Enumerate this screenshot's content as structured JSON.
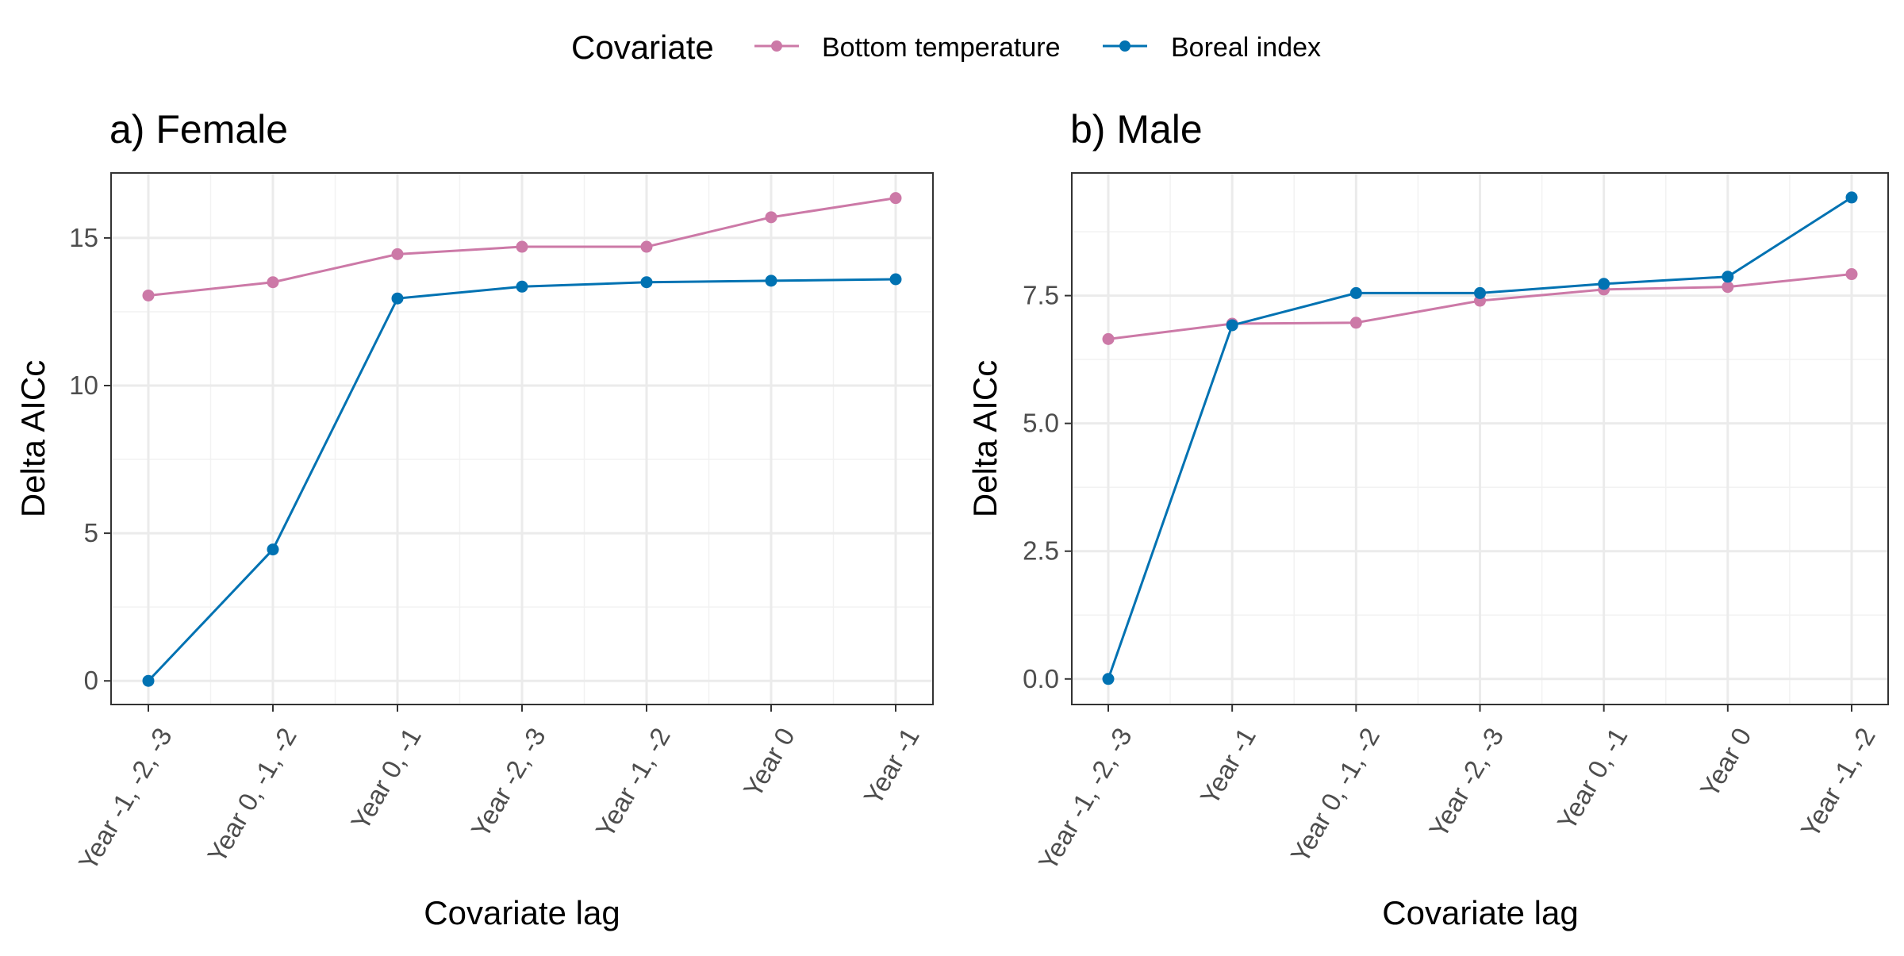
{
  "legend": {
    "title": "Covariate",
    "items": [
      {
        "label": "Bottom temperature",
        "color": "#cc79a7"
      },
      {
        "label": "Boreal index",
        "color": "#0072b2"
      }
    ]
  },
  "chart_data": [
    {
      "type": "line",
      "title": "a) Female",
      "xlabel": "Covariate lag",
      "ylabel": "Delta AICc",
      "categories": [
        "Year -1, -2, -3",
        "Year 0, -1, -2",
        "Year 0, -1",
        "Year -2, -3",
        "Year -1, -2",
        "Year 0",
        "Year -1"
      ],
      "ylim": [
        -0.8,
        17.2
      ],
      "yticks": [
        0,
        5,
        10,
        15
      ],
      "ytick_labels": [
        "0",
        "5",
        "10",
        "15"
      ],
      "grid": true,
      "series": [
        {
          "name": "Bottom temperature",
          "color": "#cc79a7",
          "values": [
            13.05,
            13.5,
            14.45,
            14.7,
            14.7,
            15.7,
            16.35
          ]
        },
        {
          "name": "Boreal index",
          "color": "#0072b2",
          "values": [
            0.0,
            4.45,
            12.95,
            13.35,
            13.5,
            13.55,
            13.6
          ]
        }
      ]
    },
    {
      "type": "line",
      "title": "b) Male",
      "xlabel": "Covariate lag",
      "ylabel": "Delta AICc",
      "categories": [
        "Year -1, -2, -3",
        "Year -1",
        "Year 0, -1, -2",
        "Year -2, -3",
        "Year 0, -1",
        "Year 0",
        "Year -1, -2"
      ],
      "ylim": [
        -0.5,
        9.9
      ],
      "yticks": [
        0,
        2.5,
        5,
        7.5
      ],
      "ytick_labels": [
        "0.0",
        "2.5",
        "5.0",
        "7.5"
      ],
      "grid": true,
      "series": [
        {
          "name": "Bottom temperature",
          "color": "#cc79a7",
          "values": [
            6.65,
            6.95,
            6.97,
            7.4,
            7.62,
            7.67,
            7.92
          ]
        },
        {
          "name": "Boreal index",
          "color": "#0072b2",
          "values": [
            0.0,
            6.92,
            7.55,
            7.55,
            7.73,
            7.87,
            9.42
          ]
        }
      ]
    }
  ]
}
